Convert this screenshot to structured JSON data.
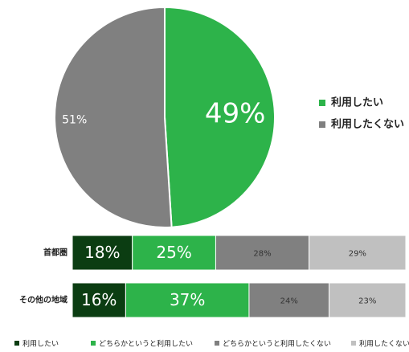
{
  "chart_data": [
    {
      "type": "pie",
      "categories": [
        "利用したい",
        "利用したくない"
      ],
      "values": [
        49,
        51
      ],
      "value_labels": [
        "49%",
        "51%"
      ],
      "colors": [
        "#2db34a",
        "#808080"
      ],
      "legend": "right"
    },
    {
      "type": "stacked-bar-horizontal",
      "categories": [
        "首都圏",
        "その他の地域"
      ],
      "xlim": [
        0,
        100
      ],
      "series": [
        {
          "name": "利用したい",
          "color": "#0b3d12",
          "values": [
            18,
            16
          ],
          "value_labels": [
            "18%",
            "16%"
          ]
        },
        {
          "name": "どちらかというと利用したい",
          "color": "#2db34a",
          "values": [
            25,
            37
          ],
          "value_labels": [
            "25%",
            "37%"
          ]
        },
        {
          "name": "どちらかというと利用したくない",
          "color": "#808080",
          "values": [
            28,
            24
          ],
          "value_labels": [
            "28%",
            "24%"
          ]
        },
        {
          "name": "利用したくない",
          "color": "#c0c0c0",
          "values": [
            29,
            23
          ],
          "value_labels": [
            "29%",
            "23%"
          ]
        }
      ],
      "legend": "bottom"
    }
  ]
}
